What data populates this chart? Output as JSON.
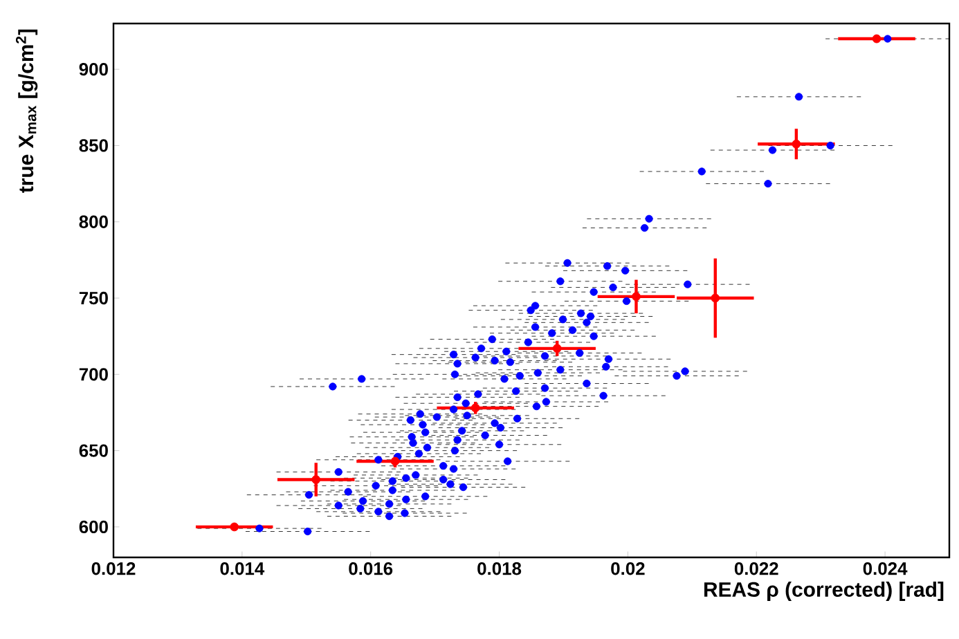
{
  "chart_data": {
    "type": "scatter",
    "xlabel": "REAS ρ (corrected) [rad]",
    "ylabel": "true X$_{max}$ [g/cm$^{2}$]",
    "xlim": [
      0.012,
      0.025
    ],
    "ylim": [
      580,
      930
    ],
    "xticks": [
      0.012,
      0.014,
      0.016,
      0.018,
      0.02,
      0.022,
      0.024
    ],
    "yticks": [
      600,
      650,
      700,
      750,
      800,
      850,
      900
    ],
    "grid": false,
    "series": [
      {
        "marker": "circle",
        "color": "#0000ff",
        "x": [
          0.02404,
          0.02266,
          0.02225,
          0.02315,
          0.02115,
          0.02218,
          0.02033,
          0.02026,
          0.01906,
          0.01968,
          0.01996,
          0.01895,
          0.01947,
          0.01977,
          0.02093,
          0.01849,
          0.01856,
          0.01998,
          0.01927,
          0.01942,
          0.01936,
          0.01899,
          0.01856,
          0.01882,
          0.01914,
          0.01947,
          0.01789,
          0.01845,
          0.01772,
          0.01811,
          0.01729,
          0.01763,
          0.01793,
          0.01925,
          0.0197,
          0.01871,
          0.01735,
          0.01817,
          0.0186,
          0.01895,
          0.01966,
          0.02076,
          0.02089,
          0.01731,
          0.01808,
          0.01832,
          0.01586,
          0.01541,
          0.01767,
          0.01936,
          0.01735,
          0.01826,
          0.01962,
          0.01871,
          0.01858,
          0.01748,
          0.01677,
          0.01873,
          0.01828,
          0.01662,
          0.01681,
          0.01703,
          0.01729,
          0.0175,
          0.01793,
          0.01664,
          0.01685,
          0.01742,
          0.01778,
          0.01802,
          0.01666,
          0.01688,
          0.01735,
          0.018,
          0.01642,
          0.01675,
          0.01731,
          0.01813,
          0.01612,
          0.01713,
          0.01729,
          0.0155,
          0.01634,
          0.01655,
          0.0167,
          0.01713,
          0.01724,
          0.01744,
          0.01608,
          0.01565,
          0.01504,
          0.01634,
          0.01685,
          0.01655,
          0.0155,
          0.01588,
          0.01629,
          0.01584,
          0.01612,
          0.01629,
          0.01653,
          0.01427,
          0.01502
        ],
        "values": [
          920,
          882,
          847,
          850,
          833,
          825,
          802,
          796,
          773,
          771,
          768,
          761,
          754,
          757,
          759,
          742,
          745,
          748,
          740,
          738,
          734,
          736,
          731,
          727,
          729,
          725,
          723,
          721,
          717,
          715,
          713,
          711,
          709,
          714,
          710,
          712,
          707,
          708,
          701,
          703,
          705,
          699,
          702,
          700,
          697,
          699,
          697,
          692,
          687,
          694,
          685,
          689,
          686,
          691,
          679,
          681,
          674,
          682,
          671,
          670,
          667,
          672,
          677,
          673,
          668,
          659,
          662,
          663,
          660,
          665,
          655,
          652,
          657,
          654,
          646,
          648,
          650,
          643,
          644,
          640,
          638,
          636,
          630,
          632,
          634,
          631,
          628,
          626,
          627,
          623,
          621,
          624,
          620,
          618,
          614,
          617,
          615,
          612,
          610,
          607,
          609,
          599,
          597
        ],
        "xerrors": [
          0.001,
          0.001,
          0.001,
          0.001,
          0.001,
          0.001,
          0.001,
          0.001,
          0.001,
          0.001,
          0.001,
          0.001,
          0.001,
          0.001,
          0.001,
          0.001,
          0.001,
          0.001,
          0.001,
          0.001,
          0.001,
          0.001,
          0.001,
          0.001,
          0.001,
          0.001,
          0.001,
          0.001,
          0.001,
          0.001,
          0.001,
          0.001,
          0.001,
          0.001,
          0.001,
          0.001,
          0.001,
          0.001,
          0.001,
          0.001,
          0.001,
          0.001,
          0.001,
          0.001,
          0.001,
          0.001,
          0.001,
          0.001,
          0.001,
          0.001,
          0.001,
          0.001,
          0.001,
          0.001,
          0.001,
          0.001,
          0.001,
          0.001,
          0.001,
          0.001,
          0.001,
          0.001,
          0.001,
          0.001,
          0.001,
          0.001,
          0.001,
          0.001,
          0.001,
          0.001,
          0.001,
          0.001,
          0.001,
          0.001,
          0.001,
          0.001,
          0.001,
          0.001,
          0.001,
          0.001,
          0.001,
          0.001,
          0.001,
          0.001,
          0.001,
          0.001,
          0.001,
          0.001,
          0.001,
          0.001,
          0.001,
          0.001,
          0.001,
          0.001,
          0.001,
          0.001,
          0.001,
          0.001,
          0.001,
          0.001,
          0.001,
          0.001,
          0.001
        ]
      },
      {
        "marker": "circle",
        "color": "#ff0000",
        "x": [
          0.01388,
          0.01515,
          0.01638,
          0.01763,
          0.0189,
          0.02013,
          0.02136,
          0.02262,
          0.02387
        ],
        "values": [
          600,
          631,
          643,
          678,
          717,
          751,
          750,
          851,
          920
        ],
        "errors": [
          null,
          11,
          4,
          4,
          5,
          11,
          26,
          10,
          null
        ],
        "xerrors": [
          0.0006,
          0.0006,
          0.0006,
          0.0006,
          0.0006,
          0.0006,
          0.0006,
          0.0006,
          0.0006
        ]
      }
    ]
  }
}
